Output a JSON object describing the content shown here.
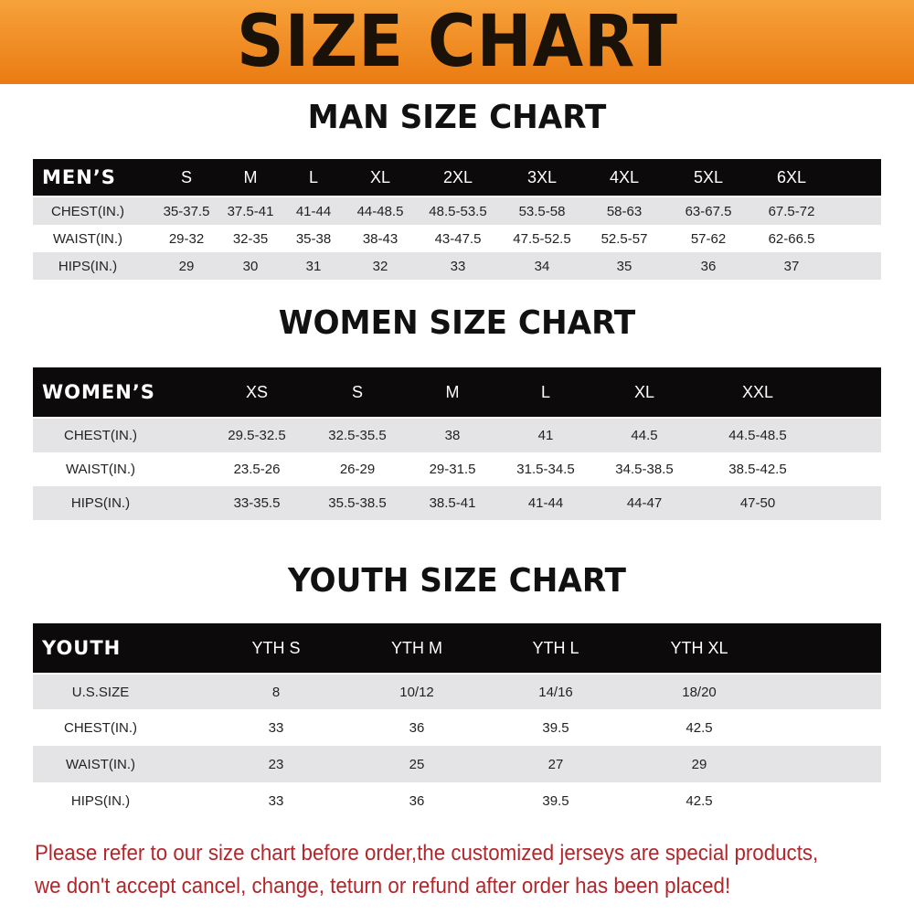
{
  "title": "SIZE CHART",
  "colors": {
    "banner": "#ef8a1f",
    "header_row": "#0c0a0a",
    "stripe": "#e4e4e6",
    "note": "#b3262b"
  },
  "men": {
    "title": "MAN SIZE CHART",
    "header": "MEN’S",
    "sizes": [
      "S",
      "M",
      "L",
      "XL",
      "2XL",
      "3XL",
      "4XL",
      "5XL",
      "6XL"
    ],
    "rows": [
      {
        "label": "CHEST(IN.)",
        "values": [
          "35-37.5",
          "37.5-41",
          "41-44",
          "44-48.5",
          "48.5-53.5",
          "53.5-58",
          "58-63",
          "63-67.5",
          "67.5-72"
        ]
      },
      {
        "label": "WAIST(IN.)",
        "values": [
          "29-32",
          "32-35",
          "35-38",
          "38-43",
          "43-47.5",
          "47.5-52.5",
          "52.5-57",
          "57-62",
          "62-66.5"
        ]
      },
      {
        "label": "HIPS(IN.)",
        "values": [
          "29",
          "30",
          "31",
          "32",
          "33",
          "34",
          "35",
          "36",
          "37"
        ]
      }
    ]
  },
  "women": {
    "title": "WOMEN SIZE CHART",
    "header": "WOMEN’S",
    "sizes": [
      "XS",
      "S",
      "M",
      "L",
      "XL",
      "XXL"
    ],
    "rows": [
      {
        "label": "CHEST(IN.)",
        "values": [
          "29.5-32.5",
          "32.5-35.5",
          "38",
          "41",
          "44.5",
          "44.5-48.5"
        ]
      },
      {
        "label": "WAIST(IN.)",
        "values": [
          "23.5-26",
          "26-29",
          "29-31.5",
          "31.5-34.5",
          "34.5-38.5",
          "38.5-42.5"
        ]
      },
      {
        "label": "HIPS(IN.)",
        "values": [
          "33-35.5",
          "35.5-38.5",
          "38.5-41",
          "41-44",
          "44-47",
          "47-50"
        ]
      }
    ]
  },
  "youth": {
    "title": "YOUTH SIZE CHART",
    "header": "YOUTH",
    "sizes": [
      "YTH S",
      "YTH M",
      "YTH L",
      "YTH XL"
    ],
    "rows": [
      {
        "label": "U.S.SIZE",
        "values": [
          "8",
          "10/12",
          "14/16",
          "18/20"
        ]
      },
      {
        "label": "CHEST(IN.)",
        "values": [
          "33",
          "36",
          "39.5",
          "42.5"
        ]
      },
      {
        "label": "WAIST(IN.)",
        "values": [
          "23",
          "25",
          "27",
          "29"
        ]
      },
      {
        "label": "HIPS(IN.)",
        "values": [
          "33",
          "36",
          "39.5",
          "42.5"
        ]
      }
    ]
  },
  "note": {
    "line1": "Please refer to our size chart before order,the customized jerseys are special products,",
    "line2": "we don't accept cancel, change, teturn or refund after order has been placed!"
  }
}
